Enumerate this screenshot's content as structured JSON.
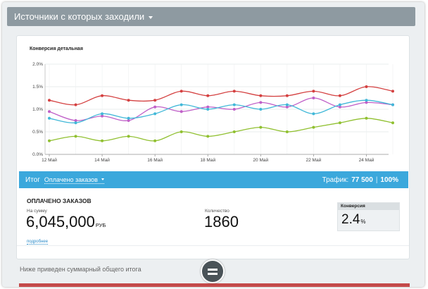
{
  "header": {
    "title": "Источники с которых заходили"
  },
  "chart_data": {
    "type": "line",
    "title": "Конверсия детальная",
    "y_ticks": [
      "0.0%",
      "0.5%",
      "1.0%",
      "1.5%",
      "2.0%"
    ],
    "ylim": [
      0,
      2.0
    ],
    "x_ticks": [
      "12 Май",
      "14 Май",
      "16 Май",
      "18 Май",
      "20 Май",
      "22 Май",
      "24 Май"
    ],
    "x_tick_index": [
      0,
      2,
      4,
      6,
      8,
      10,
      12
    ],
    "x_count": 14,
    "grid": true,
    "series": [
      {
        "color": "#d44040",
        "values": [
          1.2,
          1.1,
          1.3,
          1.2,
          1.2,
          1.4,
          1.3,
          1.4,
          1.3,
          1.3,
          1.4,
          1.3,
          1.5,
          1.4
        ]
      },
      {
        "color": "#c060c8",
        "values": [
          0.95,
          0.75,
          0.85,
          0.75,
          1.05,
          0.95,
          1.05,
          1.0,
          1.15,
          1.05,
          1.25,
          1.05,
          1.15,
          1.1
        ]
      },
      {
        "color": "#40b8d8",
        "values": [
          0.8,
          0.7,
          0.9,
          0.8,
          0.9,
          1.1,
          1.0,
          1.1,
          1.0,
          1.1,
          0.9,
          1.1,
          1.2,
          1.1
        ]
      },
      {
        "color": "#90c030",
        "values": [
          0.3,
          0.4,
          0.3,
          0.4,
          0.3,
          0.5,
          0.4,
          0.5,
          0.6,
          0.5,
          0.6,
          0.7,
          0.8,
          0.7
        ]
      }
    ]
  },
  "totals_bar": {
    "label": "Итог",
    "metric": "Оплачено заказов",
    "traffic_label": "Трафик:",
    "traffic_value": "77 500",
    "traffic_pct": "100%"
  },
  "summary": {
    "title": "ОПЛАЧЕНО ЗАКАЗОВ",
    "sum_label": "На сумму",
    "sum_value": "6,045,000",
    "sum_unit": "РУБ",
    "qty_label": "Количество",
    "qty_value": "1860",
    "conv_label": "Конверсия",
    "conv_value": "2.4",
    "conv_unit": "%",
    "more_link": "подробнее"
  },
  "footer": {
    "note": "Ниже приведен суммарный общего итога"
  },
  "colors": {
    "topbar": "#8e9aa1",
    "accent": "#3ba8dc",
    "danger": "#c44a4a"
  }
}
